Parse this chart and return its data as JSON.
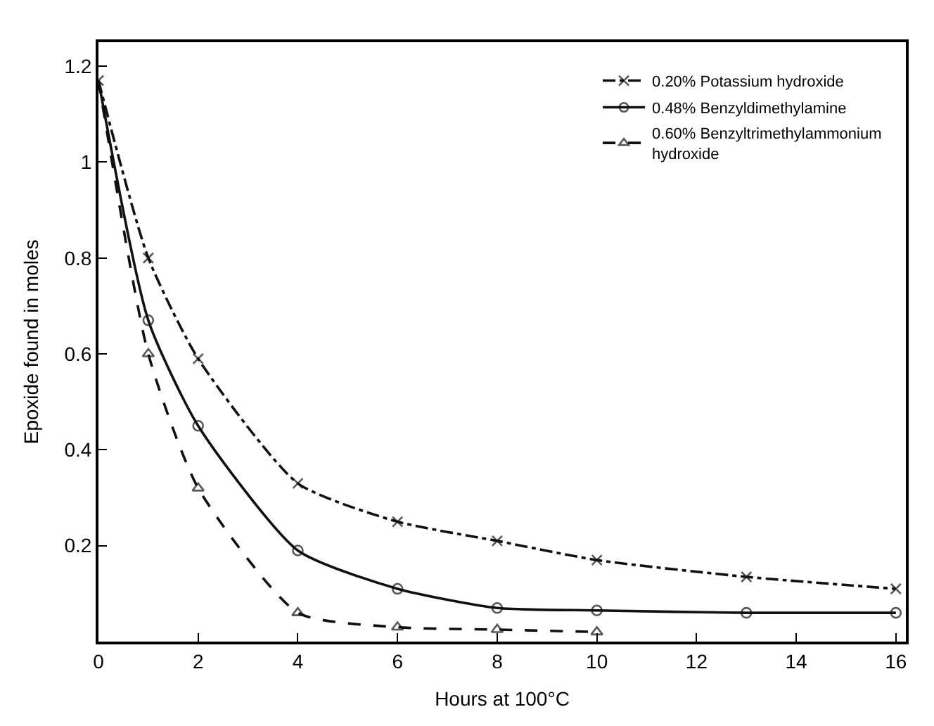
{
  "chart_data": {
    "type": "line",
    "xlabel": "Hours at 100°C",
    "ylabel": "Epoxide found in moles",
    "xlim": [
      0,
      16.2
    ],
    "ylim": [
      0,
      1.25
    ],
    "xticks": [
      0,
      2,
      4,
      6,
      8,
      10,
      12,
      14,
      16
    ],
    "yticks": [
      0.2,
      0.4,
      0.6,
      0.8,
      1.0,
      1.2
    ],
    "legend": "top right",
    "series": [
      {
        "name": "0.20% Potassium hydroxide",
        "color": "#111111",
        "marker": "cross",
        "line_style": "dashdot",
        "x": [
          0,
          1,
          2,
          4,
          6,
          8,
          10,
          13,
          16
        ],
        "values": [
          1.17,
          0.8,
          0.59,
          0.33,
          0.25,
          0.21,
          0.17,
          0.135,
          0.11
        ]
      },
      {
        "name": "0.48% Benzyldimethylamine",
        "color": "#111111",
        "marker": "circle",
        "line_style": "solid",
        "x": [
          0,
          1,
          2,
          4,
          6,
          8,
          10,
          13,
          16
        ],
        "values": [
          1.17,
          0.67,
          0.45,
          0.19,
          0.11,
          0.07,
          0.065,
          0.06,
          0.06
        ]
      },
      {
        "name": "0.60% Benzyltrimethylammonium hydroxide",
        "color": "#111111",
        "marker": "triangle",
        "line_style": "dashed",
        "x": [
          0,
          1,
          2,
          4,
          6,
          8,
          10
        ],
        "values": [
          1.17,
          0.6,
          0.32,
          0.06,
          0.03,
          0.025,
          0.02
        ]
      }
    ]
  }
}
